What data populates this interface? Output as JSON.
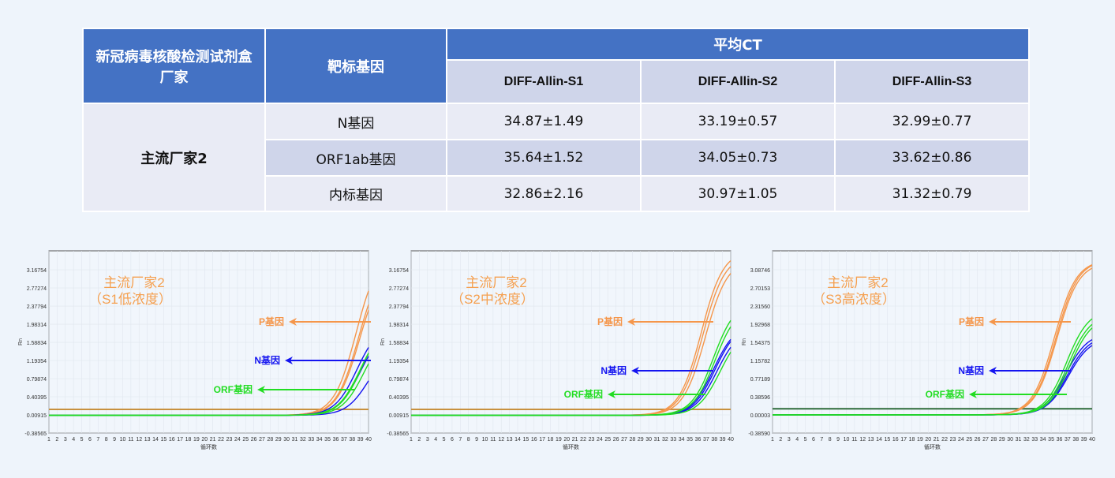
{
  "table": {
    "header": {
      "maker": "新冠病毒核酸检测试剂盒厂家",
      "target": "靶标基因",
      "avg_ct": "平均CT",
      "samples": [
        "DIFF-Allin-S1",
        "DIFF-Allin-S2",
        "DIFF-Allin-S3"
      ]
    },
    "maker": "主流厂家2",
    "rows": [
      {
        "gene": "N基因",
        "values": [
          "34.87±1.49",
          "33.19±0.57",
          "32.99±0.77"
        ]
      },
      {
        "gene": "ORF1ab基因",
        "values": [
          "35.64±1.52",
          "34.05±0.73",
          "33.62±0.86"
        ]
      },
      {
        "gene": "内标基因",
        "values": [
          "32.86±2.16",
          "30.97±1.05",
          "31.32±0.79"
        ]
      }
    ]
  },
  "chart_data": [
    {
      "type": "line",
      "title": [
        "主流厂家2",
        "（S1低浓度）"
      ],
      "xlabel": "循环数",
      "ylabel": "Rn",
      "xlim": [
        1,
        40
      ],
      "ylim": [
        -0.38565,
        3.58
      ],
      "yticks": [
        "3.16754",
        "2.77274",
        "2.37794",
        "1.98314",
        "1.58834",
        "1.19354",
        "0.79874",
        "0.40395",
        "0.00915",
        "-0.38565"
      ],
      "threshold": 0.13,
      "threshold_color": "#c8913f",
      "labels": {
        "P": "P基因",
        "N": "N基因",
        "ORF": "ORF基因"
      },
      "series": [
        {
          "name": "P基因",
          "color": "#f5964a",
          "curves": [
            {
              "mid": 38.5,
              "max": 3.6
            },
            {
              "mid": 38.8,
              "max": 3.4
            },
            {
              "mid": 38.9,
              "max": 3.3
            }
          ]
        },
        {
          "name": "N基因",
          "color": "#1414f0",
          "curves": [
            {
              "mid": 38.6,
              "max": 2.0
            },
            {
              "mid": 39.0,
              "max": 1.9
            },
            {
              "mid": 40.0,
              "max": 1.5
            }
          ]
        },
        {
          "name": "ORF基因",
          "color": "#22dd22",
          "curves": [
            {
              "mid": 39.0,
              "max": 2.0
            },
            {
              "mid": 39.5,
              "max": 1.9
            },
            {
              "mid": 39.2,
              "max": 2.1
            }
          ]
        }
      ]
    },
    {
      "type": "line",
      "title": [
        "主流厂家2",
        "（S2中浓度）"
      ],
      "xlabel": "循环数",
      "ylabel": "Rn",
      "xlim": [
        1,
        40
      ],
      "ylim": [
        -0.38565,
        3.58
      ],
      "yticks": [
        "3.16754",
        "2.77274",
        "2.37794",
        "1.98314",
        "1.58834",
        "1.19354",
        "0.79874",
        "0.40395",
        "0.00915",
        "-0.38565"
      ],
      "threshold": 0.13,
      "threshold_color": "#c8913f",
      "labels": {
        "P": "P基因",
        "N": "N基因",
        "ORF": "ORF基因"
      },
      "series": [
        {
          "name": "P基因",
          "color": "#f5964a",
          "curves": [
            {
              "mid": 36.4,
              "max": 3.6
            },
            {
              "mid": 36.6,
              "max": 3.5
            },
            {
              "mid": 36.9,
              "max": 3.4
            }
          ]
        },
        {
          "name": "N基因",
          "color": "#1414f0",
          "curves": [
            {
              "mid": 37.9,
              "max": 2.0
            },
            {
              "mid": 38.1,
              "max": 2.0
            },
            {
              "mid": 38.3,
              "max": 1.9
            }
          ]
        },
        {
          "name": "ORF基因",
          "color": "#22dd22",
          "curves": [
            {
              "mid": 37.9,
              "max": 2.5
            },
            {
              "mid": 38.1,
              "max": 2.4
            },
            {
              "mid": 38.7,
              "max": 1.9
            }
          ]
        }
      ]
    },
    {
      "type": "line",
      "title": [
        "主流厂家2",
        "（S3高浓度）"
      ],
      "xlabel": "循环数",
      "ylabel": "Rn",
      "xlim": [
        1,
        40
      ],
      "ylim": [
        -0.3859,
        3.49
      ],
      "yticks": [
        "3.08746",
        "2.70153",
        "2.31560",
        "1.92968",
        "1.54375",
        "1.15782",
        "0.77189",
        "0.38596",
        "0.00003",
        "-0.38590"
      ],
      "threshold": 0.13,
      "threshold_color": "#2e6b3a",
      "labels": {
        "P": "P基因",
        "N": "N基因",
        "ORF": "ORF基因"
      },
      "series": [
        {
          "name": "P基因",
          "color": "#f5964a",
          "curves": [
            {
              "mid": 35.4,
              "max": 3.3
            },
            {
              "mid": 35.6,
              "max": 3.3
            },
            {
              "mid": 35.7,
              "max": 3.25
            }
          ]
        },
        {
          "name": "N基因",
          "color": "#1414f0",
          "curves": [
            {
              "mid": 36.8,
              "max": 1.75
            },
            {
              "mid": 37.0,
              "max": 1.7
            },
            {
              "mid": 37.1,
              "max": 1.65
            }
          ]
        },
        {
          "name": "ORF基因",
          "color": "#22dd22",
          "curves": [
            {
              "mid": 36.9,
              "max": 2.25
            },
            {
              "mid": 37.1,
              "max": 2.15
            },
            {
              "mid": 37.3,
              "max": 2.1
            }
          ]
        }
      ]
    }
  ]
}
